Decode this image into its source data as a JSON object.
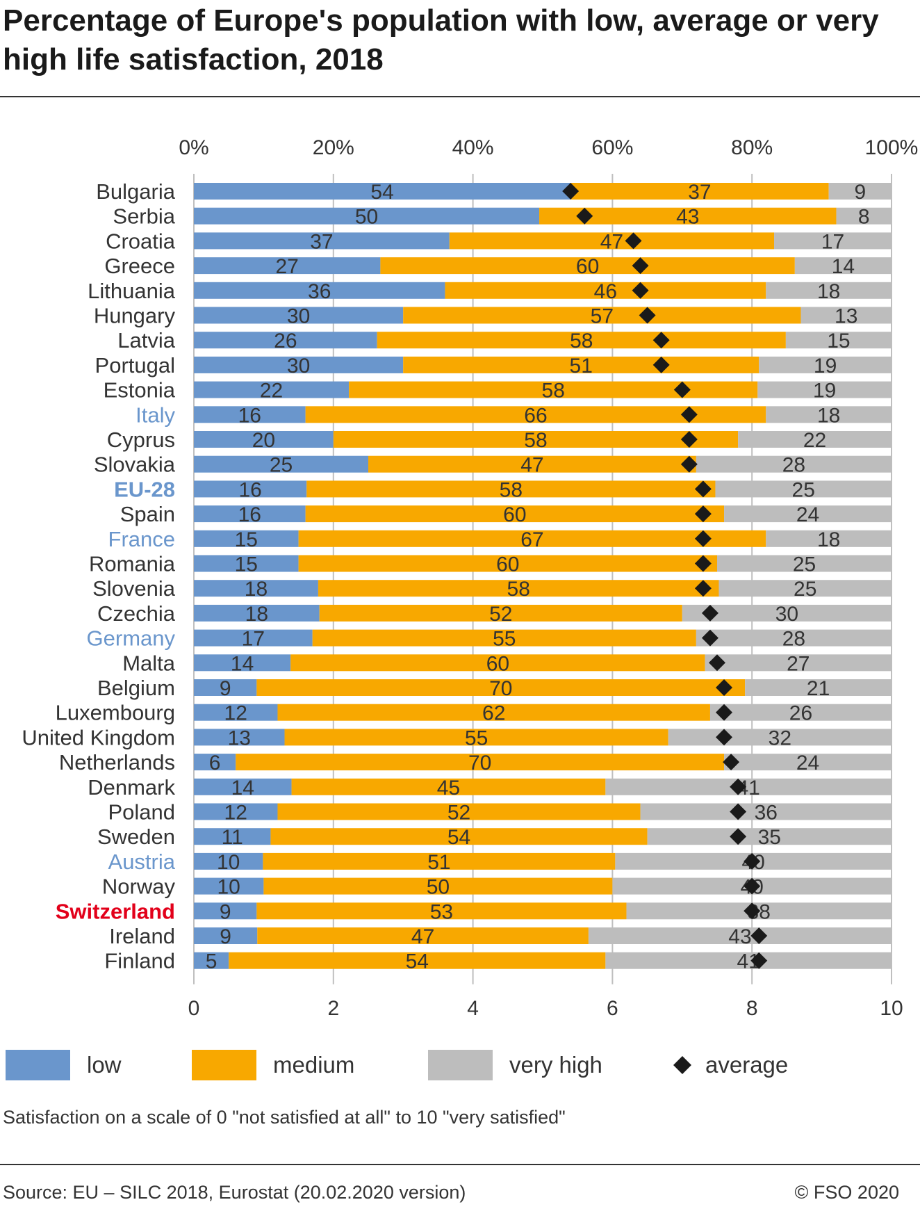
{
  "title": "Percentage of Europe's population with low, average or very high life satisfaction, 2018",
  "note": "Satisfaction on a scale of 0 \"not satisfied at all\" to 10 \"very satisfied\"",
  "source": "Source: EU – SILC 2018, Eurostat (20.02.2020 version)",
  "copyright": "© FSO 2020",
  "colors": {
    "low": "#6a96cc",
    "medium": "#f8a800",
    "very_high": "#bdbdbd",
    "average": "#1a1a1a",
    "highlight_blue": "#6a96cc",
    "highlight_red": "#e2001a"
  },
  "chart_data": {
    "type": "bar",
    "orientation": "horizontal",
    "stacked": true,
    "top_axis": {
      "ticks": [
        "0%",
        "20%",
        "40%",
        "60%",
        "80%",
        "100%"
      ],
      "range": [
        0,
        100
      ]
    },
    "bottom_axis": {
      "ticks": [
        "0",
        "2",
        "4",
        "6",
        "8",
        "10"
      ],
      "range": [
        0,
        10
      ]
    },
    "grid": true,
    "legend": {
      "placement": "bottom",
      "entries": [
        {
          "key": "low",
          "label": "low"
        },
        {
          "key": "medium",
          "label": "medium"
        },
        {
          "key": "very_high",
          "label": "very high"
        },
        {
          "key": "average",
          "label": "average"
        }
      ]
    },
    "rows": [
      {
        "country": "Bulgaria",
        "style": "normal",
        "low": 54,
        "medium": 37,
        "very_high": 9,
        "average": 5.4
      },
      {
        "country": "Serbia",
        "style": "normal",
        "low": 50,
        "medium": 43,
        "very_high": 8,
        "average": 5.6
      },
      {
        "country": "Croatia",
        "style": "normal",
        "low": 37,
        "medium": 47,
        "very_high": 17,
        "average": 6.3
      },
      {
        "country": "Greece",
        "style": "normal",
        "low": 27,
        "medium": 60,
        "very_high": 14,
        "average": 6.4
      },
      {
        "country": "Lithuania",
        "style": "normal",
        "low": 36,
        "medium": 46,
        "very_high": 18,
        "average": 6.4
      },
      {
        "country": "Hungary",
        "style": "normal",
        "low": 30,
        "medium": 57,
        "very_high": 13,
        "average": 6.5
      },
      {
        "country": "Latvia",
        "style": "normal",
        "low": 26,
        "medium": 58,
        "very_high": 15,
        "average": 6.7
      },
      {
        "country": "Portugal",
        "style": "normal",
        "low": 30,
        "medium": 51,
        "very_high": 19,
        "average": 6.7
      },
      {
        "country": "Estonia",
        "style": "normal",
        "low": 22,
        "medium": 58,
        "very_high": 19,
        "average": 7.0
      },
      {
        "country": "Italy",
        "style": "blue",
        "low": 16,
        "medium": 66,
        "very_high": 18,
        "average": 7.1
      },
      {
        "country": "Cyprus",
        "style": "normal",
        "low": 20,
        "medium": 58,
        "very_high": 22,
        "average": 7.1
      },
      {
        "country": "Slovakia",
        "style": "normal",
        "low": 25,
        "medium": 47,
        "very_high": 28,
        "average": 7.1
      },
      {
        "country": "EU-28",
        "style": "blue-bold",
        "low": 16,
        "medium": 58,
        "very_high": 25,
        "average": 7.3
      },
      {
        "country": "Spain",
        "style": "normal",
        "low": 16,
        "medium": 60,
        "very_high": 24,
        "average": 7.3
      },
      {
        "country": "France",
        "style": "blue",
        "low": 15,
        "medium": 67,
        "very_high": 18,
        "average": 7.3
      },
      {
        "country": "Romania",
        "style": "normal",
        "low": 15,
        "medium": 60,
        "very_high": 25,
        "average": 7.3
      },
      {
        "country": "Slovenia",
        "style": "normal",
        "low": 18,
        "medium": 58,
        "very_high": 25,
        "average": 7.3
      },
      {
        "country": "Czechia",
        "style": "normal",
        "low": 18,
        "medium": 52,
        "very_high": 30,
        "average": 7.4
      },
      {
        "country": "Germany",
        "style": "blue",
        "low": 17,
        "medium": 55,
        "very_high": 28,
        "average": 7.4
      },
      {
        "country": "Malta",
        "style": "normal",
        "low": 14,
        "medium": 60,
        "very_high": 27,
        "average": 7.5
      },
      {
        "country": "Belgium",
        "style": "normal",
        "low": 9,
        "medium": 70,
        "very_high": 21,
        "average": 7.6
      },
      {
        "country": "Luxembourg",
        "style": "normal",
        "low": 12,
        "medium": 62,
        "very_high": 26,
        "average": 7.6
      },
      {
        "country": "United Kingdom",
        "style": "normal",
        "low": 13,
        "medium": 55,
        "very_high": 32,
        "average": 7.6
      },
      {
        "country": "Netherlands",
        "style": "normal",
        "low": 6,
        "medium": 70,
        "very_high": 24,
        "average": 7.7
      },
      {
        "country": "Denmark",
        "style": "normal",
        "low": 14,
        "medium": 45,
        "very_high": 41,
        "average": 7.8
      },
      {
        "country": "Poland",
        "style": "normal",
        "low": 12,
        "medium": 52,
        "very_high": 36,
        "average": 7.8
      },
      {
        "country": "Sweden",
        "style": "normal",
        "low": 11,
        "medium": 54,
        "very_high": 35,
        "average": 7.8
      },
      {
        "country": "Austria",
        "style": "blue",
        "low": 10,
        "medium": 51,
        "very_high": 40,
        "average": 8.0
      },
      {
        "country": "Norway",
        "style": "normal",
        "low": 10,
        "medium": 50,
        "very_high": 40,
        "average": 8.0
      },
      {
        "country": "Switzerland",
        "style": "red-bold",
        "low": 9,
        "medium": 53,
        "very_high": 38,
        "average": 8.0
      },
      {
        "country": "Ireland",
        "style": "normal",
        "low": 9,
        "medium": 47,
        "very_high": 43,
        "average": 8.1
      },
      {
        "country": "Finland",
        "style": "normal",
        "low": 5,
        "medium": 54,
        "very_high": 41,
        "average": 8.1
      }
    ]
  }
}
